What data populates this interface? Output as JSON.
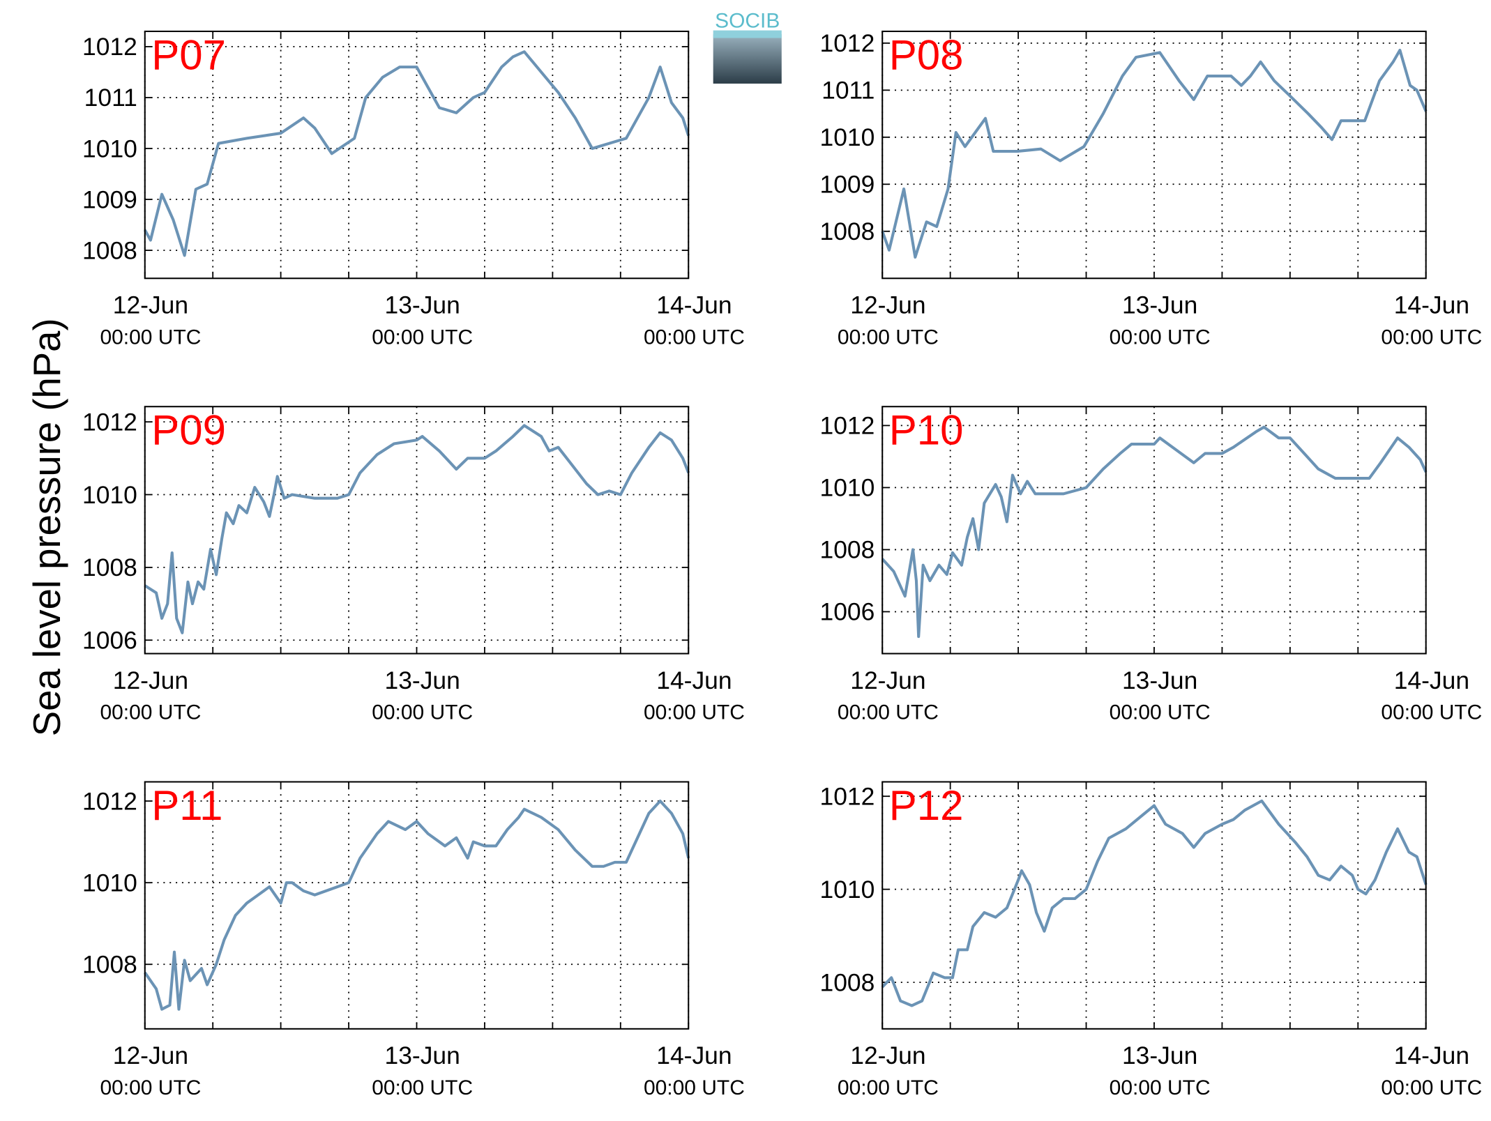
{
  "ylabel": "Sea level pressure (hPa)",
  "logo": "SOCIB",
  "chart_data": [
    {
      "type": "line",
      "title": "P07",
      "xlim": [
        0,
        48
      ],
      "ylim": [
        1007.45,
        1012.3
      ],
      "yticks": [
        1008,
        1009,
        1010,
        1011,
        1012
      ],
      "xticks": [
        {
          "value": 0,
          "label": "12-Jun",
          "sublabel": "00:00 UTC"
        },
        {
          "value": 24,
          "label": "13-Jun",
          "sublabel": "00:00 UTC"
        },
        {
          "value": 48,
          "label": "14-Jun",
          "sublabel": "00:00 UTC"
        }
      ],
      "xminorticks": [
        6,
        12,
        18,
        30,
        36,
        42
      ],
      "grid": true,
      "color": "#6b93b5",
      "x": [
        0,
        0.5,
        1.5,
        2.5,
        3.5,
        4.5,
        5.5,
        6.5,
        9,
        12,
        14,
        15,
        16.5,
        18.5,
        19.5,
        21,
        22.5,
        24,
        25,
        26,
        27.5,
        29,
        30,
        31.5,
        32.5,
        33.5,
        35,
        36.5,
        38,
        39.5,
        41,
        42.5,
        44.5,
        45.5,
        46.5,
        47.5,
        48
      ],
      "values": [
        1008.4,
        1008.2,
        1009.1,
        1008.6,
        1007.9,
        1009.2,
        1009.3,
        1010.1,
        1010.2,
        1010.3,
        1010.6,
        1010.4,
        1009.9,
        1010.2,
        1011.0,
        1011.4,
        1011.6,
        1011.6,
        1011.2,
        1010.8,
        1010.7,
        1011.0,
        1011.1,
        1011.6,
        1011.8,
        1011.9,
        1011.5,
        1011.1,
        1010.6,
        1010.0,
        1010.1,
        1010.2,
        1011.0,
        1011.6,
        1010.9,
        1010.6,
        1010.25
      ]
    },
    {
      "type": "line",
      "title": "P08",
      "xlim": [
        0,
        48
      ],
      "ylim": [
        1007.0,
        1012.25
      ],
      "yticks": [
        1008,
        1009,
        1010,
        1011,
        1012
      ],
      "xticks": [
        {
          "value": 0,
          "label": "12-Jun",
          "sublabel": "00:00 UTC"
        },
        {
          "value": 24,
          "label": "13-Jun",
          "sublabel": "00:00 UTC"
        },
        {
          "value": 48,
          "label": "14-Jun",
          "sublabel": "00:00 UTC"
        }
      ],
      "xminorticks": [
        6,
        12,
        18,
        30,
        36,
        42
      ],
      "grid": true,
      "color": "#6b93b5",
      "x": [
        0,
        0.6,
        1.9,
        2.9,
        3.9,
        4.8,
        5.8,
        6.5,
        7.3,
        9.1,
        9.8,
        11.9,
        14.0,
        15.7,
        17.8,
        19.5,
        21.2,
        22.4,
        24.5,
        26.2,
        27.5,
        28.7,
        30.8,
        31.7,
        32.5,
        33.4,
        34.6,
        35.9,
        37.6,
        38.8,
        39.7,
        40.5,
        42.6,
        43.9,
        45.1,
        45.7,
        46.6,
        47.2,
        48
      ],
      "values": [
        1008.0,
        1007.6,
        1008.9,
        1007.45,
        1008.2,
        1008.1,
        1008.9,
        1010.1,
        1009.8,
        1010.4,
        1009.7,
        1009.7,
        1009.75,
        1009.5,
        1009.8,
        1010.5,
        1011.3,
        1011.7,
        1011.8,
        1011.2,
        1010.8,
        1011.3,
        1011.3,
        1011.1,
        1011.3,
        1011.6,
        1011.2,
        1010.9,
        1010.5,
        1010.2,
        1009.95,
        1010.35,
        1010.35,
        1011.2,
        1011.6,
        1011.85,
        1011.1,
        1011.0,
        1010.55
      ]
    },
    {
      "type": "line",
      "title": "P09",
      "xlim": [
        0,
        48
      ],
      "ylim": [
        1005.63,
        1012.42
      ],
      "yticks": [
        1006,
        1008,
        1010,
        1012
      ],
      "xticks": [
        {
          "value": 0,
          "label": "12-Jun",
          "sublabel": "00:00 UTC"
        },
        {
          "value": 24,
          "label": "13-Jun",
          "sublabel": "00:00 UTC"
        },
        {
          "value": 48,
          "label": "14-Jun",
          "sublabel": "00:00 UTC"
        }
      ],
      "xminorticks": [
        6,
        12,
        18,
        30,
        36,
        42
      ],
      "grid": true,
      "color": "#6b93b5",
      "x": [
        0,
        1,
        1.5,
        2,
        2.4,
        2.8,
        3.3,
        3.8,
        4.2,
        4.7,
        5.2,
        5.8,
        6.3,
        6.8,
        7.2,
        7.8,
        8.3,
        9,
        9.7,
        10.5,
        11,
        11.4,
        11.7,
        12.3,
        13,
        15,
        17,
        18,
        19,
        20.5,
        22,
        24,
        24.5,
        26,
        27.5,
        28.5,
        30,
        31,
        32.5,
        33.5,
        35,
        35.7,
        36.5,
        37.5,
        39,
        40,
        41,
        42,
        43,
        44.5,
        45.5,
        46.5,
        47.5,
        48
      ],
      "values": [
        1007.5,
        1007.3,
        1006.6,
        1007.0,
        1008.4,
        1006.6,
        1006.2,
        1007.6,
        1007.0,
        1007.6,
        1007.4,
        1008.5,
        1007.8,
        1008.8,
        1009.5,
        1009.2,
        1009.7,
        1009.5,
        1010.2,
        1009.8,
        1009.4,
        1010.0,
        1010.5,
        1009.9,
        1010.0,
        1009.9,
        1009.9,
        1010.0,
        1010.6,
        1011.1,
        1011.4,
        1011.5,
        1011.6,
        1011.2,
        1010.7,
        1011.0,
        1011.0,
        1011.2,
        1011.6,
        1011.9,
        1011.6,
        1011.2,
        1011.3,
        1010.9,
        1010.3,
        1010.0,
        1010.1,
        1010.0,
        1010.6,
        1011.3,
        1011.7,
        1011.5,
        1011.0,
        1010.6
      ]
    },
    {
      "type": "line",
      "title": "P10",
      "xlim": [
        0,
        48
      ],
      "ylim": [
        1004.65,
        1012.61
      ],
      "yticks": [
        1006,
        1008,
        1010,
        1012
      ],
      "xticks": [
        {
          "value": 0,
          "label": "12-Jun",
          "sublabel": "00:00 UTC"
        },
        {
          "value": 24,
          "label": "13-Jun",
          "sublabel": "00:00 UTC"
        },
        {
          "value": 48,
          "label": "14-Jun",
          "sublabel": "00:00 UTC"
        }
      ],
      "xminorticks": [
        6,
        12,
        18,
        30,
        36,
        42
      ],
      "grid": true,
      "color": "#6b93b5",
      "x": [
        0,
        1,
        2,
        2.7,
        3,
        3.2,
        3.6,
        4.2,
        5,
        5.7,
        6.2,
        7,
        7.5,
        8,
        8.5,
        9,
        10,
        10.5,
        11,
        11.5,
        12.2,
        12.8,
        13.5,
        16,
        18,
        19.5,
        21,
        22,
        24,
        24.5,
        26,
        27.5,
        28.5,
        30,
        31,
        33,
        33.7,
        35,
        36,
        37.5,
        38.5,
        40,
        42,
        43,
        44,
        45.5,
        46.5,
        47.5,
        48
      ],
      "values": [
        1007.7,
        1007.3,
        1006.5,
        1008.0,
        1007.0,
        1005.2,
        1007.5,
        1007.0,
        1007.5,
        1007.2,
        1007.9,
        1007.5,
        1008.4,
        1009.0,
        1008.0,
        1009.5,
        1010.1,
        1009.7,
        1008.9,
        1010.4,
        1009.8,
        1010.2,
        1009.8,
        1009.8,
        1010.0,
        1010.6,
        1011.1,
        1011.4,
        1011.4,
        1011.6,
        1011.2,
        1010.8,
        1011.1,
        1011.1,
        1011.3,
        1011.8,
        1011.95,
        1011.6,
        1011.6,
        1011.0,
        1010.6,
        1010.3,
        1010.3,
        1010.3,
        1010.8,
        1011.6,
        1011.3,
        1010.9,
        1010.5
      ]
    },
    {
      "type": "line",
      "title": "P11",
      "xlim": [
        0,
        48
      ],
      "ylim": [
        1006.42,
        1012.47
      ],
      "yticks": [
        1008,
        1010,
        1012
      ],
      "xticks": [
        {
          "value": 0,
          "label": "12-Jun",
          "sublabel": "00:00 UTC"
        },
        {
          "value": 24,
          "label": "13-Jun",
          "sublabel": "00:00 UTC"
        },
        {
          "value": 48,
          "label": "14-Jun",
          "sublabel": "00:00 UTC"
        }
      ],
      "xminorticks": [
        6,
        12,
        18,
        30,
        36,
        42
      ],
      "grid": true,
      "color": "#6b93b5",
      "x": [
        0,
        1,
        1.5,
        2.2,
        2.6,
        3,
        3.5,
        4,
        5,
        5.5,
        6.3,
        7,
        8,
        9,
        10,
        11,
        12,
        12.5,
        13,
        14,
        15,
        17,
        18,
        19,
        20.5,
        21.5,
        23,
        24,
        25,
        26.5,
        27.5,
        28.5,
        29,
        30,
        31,
        32,
        33,
        33.5,
        35,
        36.5,
        38,
        39.5,
        40.5,
        41.5,
        42.5,
        43.5,
        44.5,
        45.5,
        46.5,
        47.5,
        48
      ],
      "values": [
        1007.8,
        1007.4,
        1006.9,
        1007.0,
        1008.3,
        1006.9,
        1008.1,
        1007.6,
        1007.9,
        1007.5,
        1008.0,
        1008.6,
        1009.2,
        1009.5,
        1009.7,
        1009.9,
        1009.5,
        1010.0,
        1010.0,
        1009.8,
        1009.7,
        1009.9,
        1010.0,
        1010.6,
        1011.2,
        1011.5,
        1011.3,
        1011.5,
        1011.2,
        1010.9,
        1011.1,
        1010.6,
        1011.0,
        1010.9,
        1010.9,
        1011.3,
        1011.6,
        1011.8,
        1011.6,
        1011.3,
        1010.8,
        1010.4,
        1010.4,
        1010.5,
        1010.5,
        1011.1,
        1011.7,
        1012.0,
        1011.7,
        1011.2,
        1010.6
      ]
    },
    {
      "type": "line",
      "title": "P12",
      "xlim": [
        0,
        48
      ],
      "ylim": [
        1007.0,
        1012.31
      ],
      "yticks": [
        1008,
        1010,
        1012
      ],
      "xticks": [
        {
          "value": 0,
          "label": "12-Jun",
          "sublabel": "00:00 UTC"
        },
        {
          "value": 24,
          "label": "13-Jun",
          "sublabel": "00:00 UTC"
        },
        {
          "value": 48,
          "label": "14-Jun",
          "sublabel": "00:00 UTC"
        }
      ],
      "xminorticks": [
        6,
        12,
        18,
        30,
        36,
        42
      ],
      "grid": true,
      "color": "#6b93b5",
      "x": [
        0,
        0.8,
        1.6,
        2.6,
        3.5,
        4.5,
        5.5,
        6.2,
        6.7,
        7.5,
        8,
        9,
        10,
        11,
        11.5,
        12,
        12.3,
        13,
        13.6,
        14.3,
        15,
        16,
        17,
        18,
        19,
        20,
        21.5,
        23,
        24,
        25,
        26.5,
        27.5,
        28.5,
        30,
        31,
        32,
        33.5,
        35,
        36.5,
        37.5,
        38.5,
        39.5,
        40.5,
        41.5,
        42,
        42.7,
        43.5,
        44.5,
        45.5,
        46.5,
        47.2,
        48
      ],
      "values": [
        1007.9,
        1008.1,
        1007.6,
        1007.5,
        1007.6,
        1008.2,
        1008.1,
        1008.1,
        1008.7,
        1008.7,
        1009.2,
        1009.5,
        1009.4,
        1009.6,
        1009.9,
        1010.2,
        1010.4,
        1010.1,
        1009.5,
        1009.1,
        1009.6,
        1009.8,
        1009.8,
        1010.0,
        1010.6,
        1011.1,
        1011.3,
        1011.6,
        1011.8,
        1011.4,
        1011.2,
        1010.9,
        1011.2,
        1011.4,
        1011.5,
        1011.7,
        1011.9,
        1011.4,
        1011.0,
        1010.7,
        1010.3,
        1010.2,
        1010.5,
        1010.3,
        1010.0,
        1009.9,
        1010.2,
        1010.8,
        1011.3,
        1010.8,
        1010.7,
        1010.1
      ]
    }
  ]
}
